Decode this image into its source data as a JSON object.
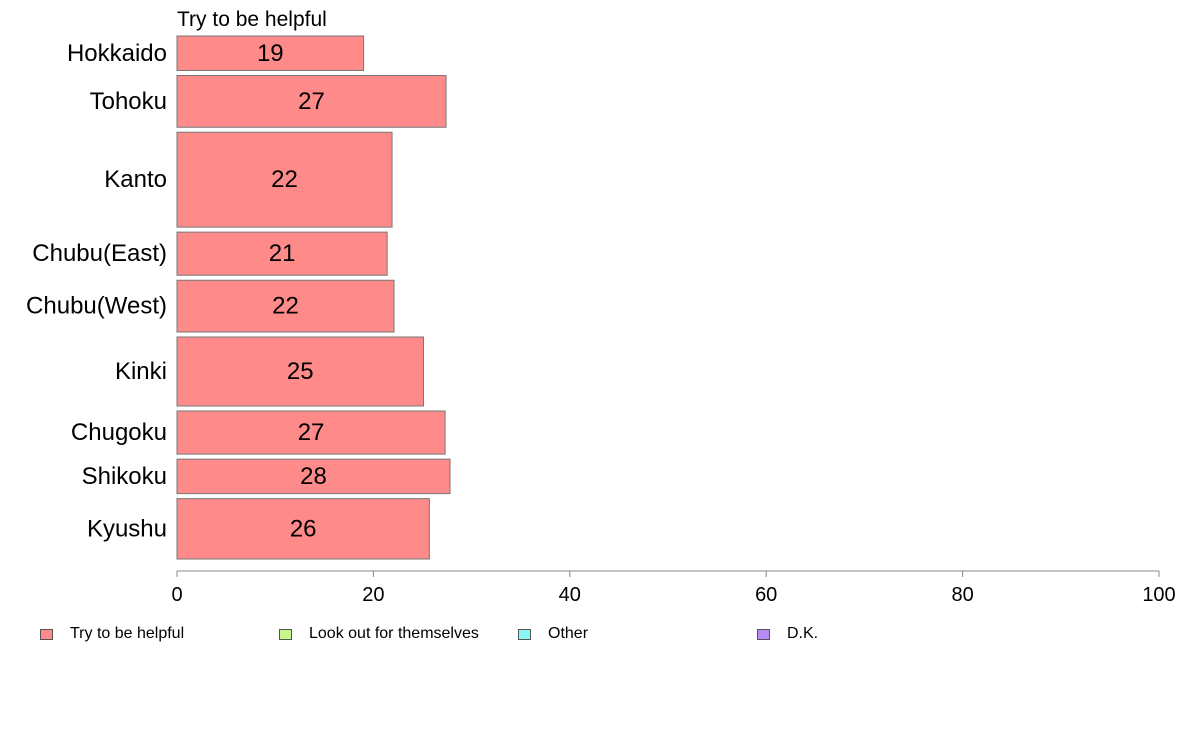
{
  "chart_data": {
    "type": "bar",
    "orientation": "horizontal",
    "title": "Try to be helpful",
    "xlim": [
      0,
      100
    ],
    "xticks": [
      "0",
      "20",
      "40",
      "60",
      "80",
      "100"
    ],
    "categories": [
      "Hokkaido",
      "Tohoku",
      "Kanto",
      "Chubu(East)",
      "Chubu(West)",
      "Kinki",
      "Chugoku",
      "Shikoku",
      "Kyushu"
    ],
    "values": [
      19,
      27.4,
      21.9,
      21.4,
      22.1,
      25.1,
      27.3,
      27.8,
      25.7
    ],
    "value_labels": [
      "19",
      "27",
      "22",
      "21",
      "22",
      "25",
      "27",
      "28",
      "26"
    ],
    "bar_weights": [
      4,
      6,
      11,
      5,
      6,
      8,
      5,
      4,
      7
    ],
    "bar_color": "#ff8a8a",
    "bar_border": "#777777",
    "grid": false,
    "legend_position": "bottom",
    "legend": [
      {
        "label": "Try to be helpful",
        "color": "#ff8a8a"
      },
      {
        "label": "Look out for themselves",
        "color": "#c8f58a"
      },
      {
        "label": "Other",
        "color": "#8af5f5"
      },
      {
        "label": "D.K.",
        "color": "#b88af5"
      }
    ]
  }
}
